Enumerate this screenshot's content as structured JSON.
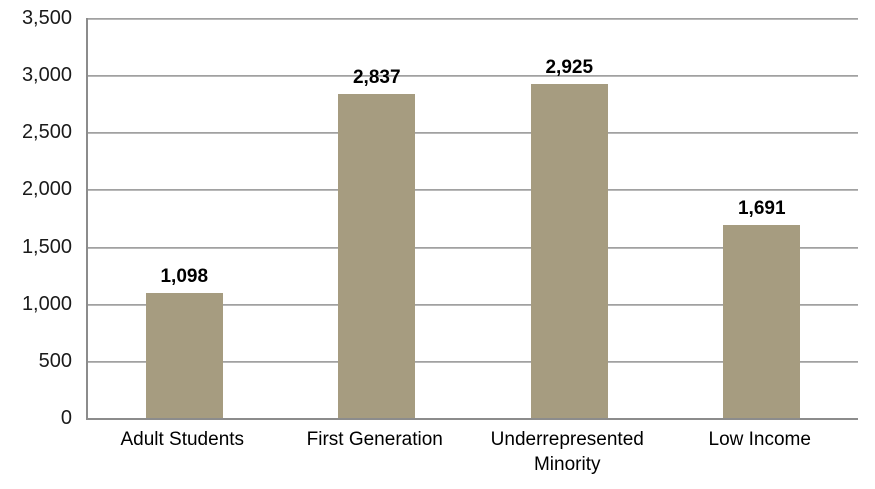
{
  "chart_data": {
    "type": "bar",
    "title": "",
    "xlabel": "",
    "ylabel": "",
    "categories": [
      "Adult Students",
      "First Generation",
      "Underrepresented Minority",
      "Low Income"
    ],
    "values": [
      1098,
      2837,
      2925,
      1691
    ],
    "value_labels": [
      "1,098",
      "2,837",
      "2,925",
      "1,691"
    ],
    "ylim": [
      0,
      3500
    ],
    "y_tick_step": 500,
    "y_ticks": [
      "0",
      "500",
      "1,000",
      "1,500",
      "2,000",
      "2,500",
      "3,000",
      "3,500"
    ],
    "grid": true,
    "legend": false,
    "colors": {
      "bar": "#a69c80",
      "gridline": "#a0a0a0",
      "axis": "#8c8c8c",
      "text": "#000000",
      "background": "#ffffff"
    }
  }
}
